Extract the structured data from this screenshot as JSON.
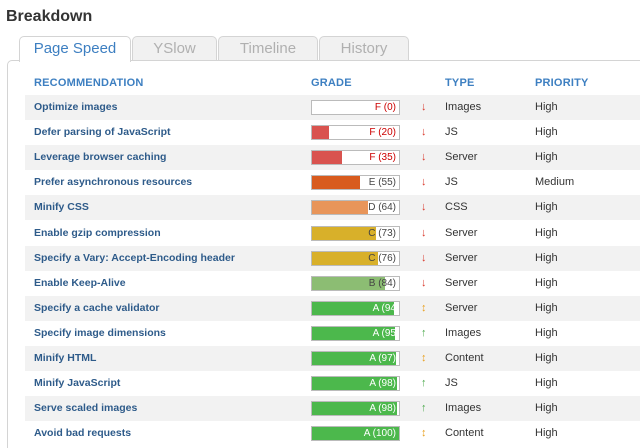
{
  "title": "Breakdown",
  "tabs": [
    {
      "label": "Page Speed",
      "active": true
    },
    {
      "label": "YSlow",
      "active": false
    },
    {
      "label": "Timeline",
      "active": false
    },
    {
      "label": "History",
      "active": false
    }
  ],
  "columns": {
    "recommendation": "RECOMMENDATION",
    "grade": "GRADE",
    "type": "TYPE",
    "priority": "PRIORITY"
  },
  "rows": [
    {
      "rec": "Optimize images",
      "grade": "F (0)",
      "score": 0,
      "color": "#d9534f",
      "text_color": "#cc0000",
      "arrow": "↓",
      "arrow_color": "#d9382b",
      "type": "Images",
      "priority": "High"
    },
    {
      "rec": "Defer parsing of JavaScript",
      "grade": "F (20)",
      "score": 20,
      "color": "#d9534f",
      "text_color": "#cc0000",
      "arrow": "↓",
      "arrow_color": "#d9382b",
      "type": "JS",
      "priority": "High"
    },
    {
      "rec": "Leverage browser caching",
      "grade": "F (35)",
      "score": 35,
      "color": "#d9534f",
      "text_color": "#cc0000",
      "arrow": "↓",
      "arrow_color": "#d9382b",
      "type": "Server",
      "priority": "High"
    },
    {
      "rec": "Prefer asynchronous resources",
      "grade": "E (55)",
      "score": 55,
      "color": "#d85b1e",
      "text_color": "#444444",
      "arrow": "↓",
      "arrow_color": "#d9382b",
      "type": "JS",
      "priority": "Medium"
    },
    {
      "rec": "Minify CSS",
      "grade": "D (64)",
      "score": 64,
      "color": "#e8955a",
      "text_color": "#444444",
      "arrow": "↓",
      "arrow_color": "#d9382b",
      "type": "CSS",
      "priority": "High"
    },
    {
      "rec": "Enable gzip compression",
      "grade": "C (73)",
      "score": 73,
      "color": "#d8b02a",
      "text_color": "#444444",
      "arrow": "↓",
      "arrow_color": "#d9382b",
      "type": "Server",
      "priority": "High"
    },
    {
      "rec": "Specify a Vary: Accept-Encoding header",
      "grade": "C (76)",
      "score": 76,
      "color": "#d8b02a",
      "text_color": "#444444",
      "arrow": "↓",
      "arrow_color": "#d9382b",
      "type": "Server",
      "priority": "High"
    },
    {
      "rec": "Enable Keep-Alive",
      "grade": "B (84)",
      "score": 84,
      "color": "#8cbd73",
      "text_color": "#444444",
      "arrow": "↓",
      "arrow_color": "#d9382b",
      "type": "Server",
      "priority": "High"
    },
    {
      "rec": "Specify a cache validator",
      "grade": "A (94",
      "score": 94,
      "color": "#4cb84c",
      "text_color": "#ffffff",
      "arrow": "↕",
      "arrow_color": "#e8a020",
      "type": "Server",
      "priority": "High"
    },
    {
      "rec": "Specify image dimensions",
      "grade": "A (95",
      "score": 95,
      "color": "#4cb84c",
      "text_color": "#ffffff",
      "arrow": "↑",
      "arrow_color": "#4aa84a",
      "type": "Images",
      "priority": "High"
    },
    {
      "rec": "Minify HTML",
      "grade": "A (97)",
      "score": 97,
      "color": "#4cb84c",
      "text_color": "#ffffff",
      "arrow": "↕",
      "arrow_color": "#e8a020",
      "type": "Content",
      "priority": "High"
    },
    {
      "rec": "Minify JavaScript",
      "grade": "A (98)",
      "score": 98,
      "color": "#4cb84c",
      "text_color": "#ffffff",
      "arrow": "↑",
      "arrow_color": "#4aa84a",
      "type": "JS",
      "priority": "High"
    },
    {
      "rec": "Serve scaled images",
      "grade": "A (98)",
      "score": 98,
      "color": "#4cb84c",
      "text_color": "#ffffff",
      "arrow": "↑",
      "arrow_color": "#4aa84a",
      "type": "Images",
      "priority": "High"
    },
    {
      "rec": "Avoid bad requests",
      "grade": "A (100)",
      "score": 100,
      "color": "#4cb84c",
      "text_color": "#ffffff",
      "arrow": "↕",
      "arrow_color": "#e8a020",
      "type": "Content",
      "priority": "High"
    }
  ]
}
